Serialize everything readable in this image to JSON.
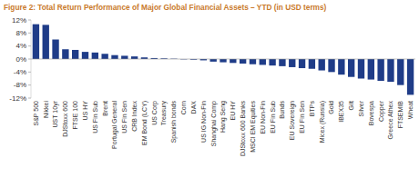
{
  "chart_data": {
    "type": "bar",
    "title": "Figure 2: Total Return Performance of Major Global Financial Assets – YTD (in USD terms)",
    "categories": [
      "S&P 500",
      "Nikkei",
      "UST 10yr",
      "DJStoxx 600",
      "FTSE 100",
      "US HY",
      "US Fin Sub",
      "Brent",
      "Portugal General",
      "US Fin Sen",
      "CRB Index",
      "EM Bond (LCY)",
      "US Corp",
      "Treasury",
      "Spanish bonds",
      "Corn",
      "DAX",
      "US IG Non-Fin",
      "Shanghai Comp",
      "Hang Seng",
      "EU HY",
      "DJStoxx 600 Banks",
      "MSCI EM Equities",
      "EU Non-Fin",
      "EU Fin Sub",
      "Bunds",
      "EU Sovereign",
      "EU Fin Sen",
      "BTPs",
      "Micex (Russia)",
      "Gold",
      "IBEX35",
      "Gilt",
      "Silver",
      "Bovespa",
      "Copper",
      "Greece Athex",
      "FTSEMIB",
      "Wheat"
    ],
    "values": [
      10.7,
      10.5,
      6.0,
      3.0,
      2.8,
      2.2,
      2.0,
      1.6,
      1.2,
      1.0,
      0.8,
      0.5,
      0.3,
      0.2,
      0.1,
      -0.1,
      -0.2,
      -0.4,
      -0.8,
      -1.0,
      -1.2,
      -1.4,
      -1.6,
      -1.8,
      -2.0,
      -2.2,
      -2.5,
      -2.8,
      -3.0,
      -3.5,
      -4.0,
      -4.8,
      -5.5,
      -6.0,
      -6.3,
      -6.7,
      -7.0,
      -8.0,
      -11.0
    ],
    "color": "#1f3c88",
    "ylim": [
      -12,
      12
    ],
    "yticks": [
      {
        "value": 12,
        "label": "12%"
      },
      {
        "value": 8,
        "label": "8%"
      },
      {
        "value": 4,
        "label": "4%"
      },
      {
        "value": 0,
        "label": "0%"
      },
      {
        "value": -4,
        "label": "-4%"
      },
      {
        "value": -8,
        "label": "-8%"
      },
      {
        "value": -12,
        "label": "-12%"
      }
    ],
    "grid": false
  }
}
